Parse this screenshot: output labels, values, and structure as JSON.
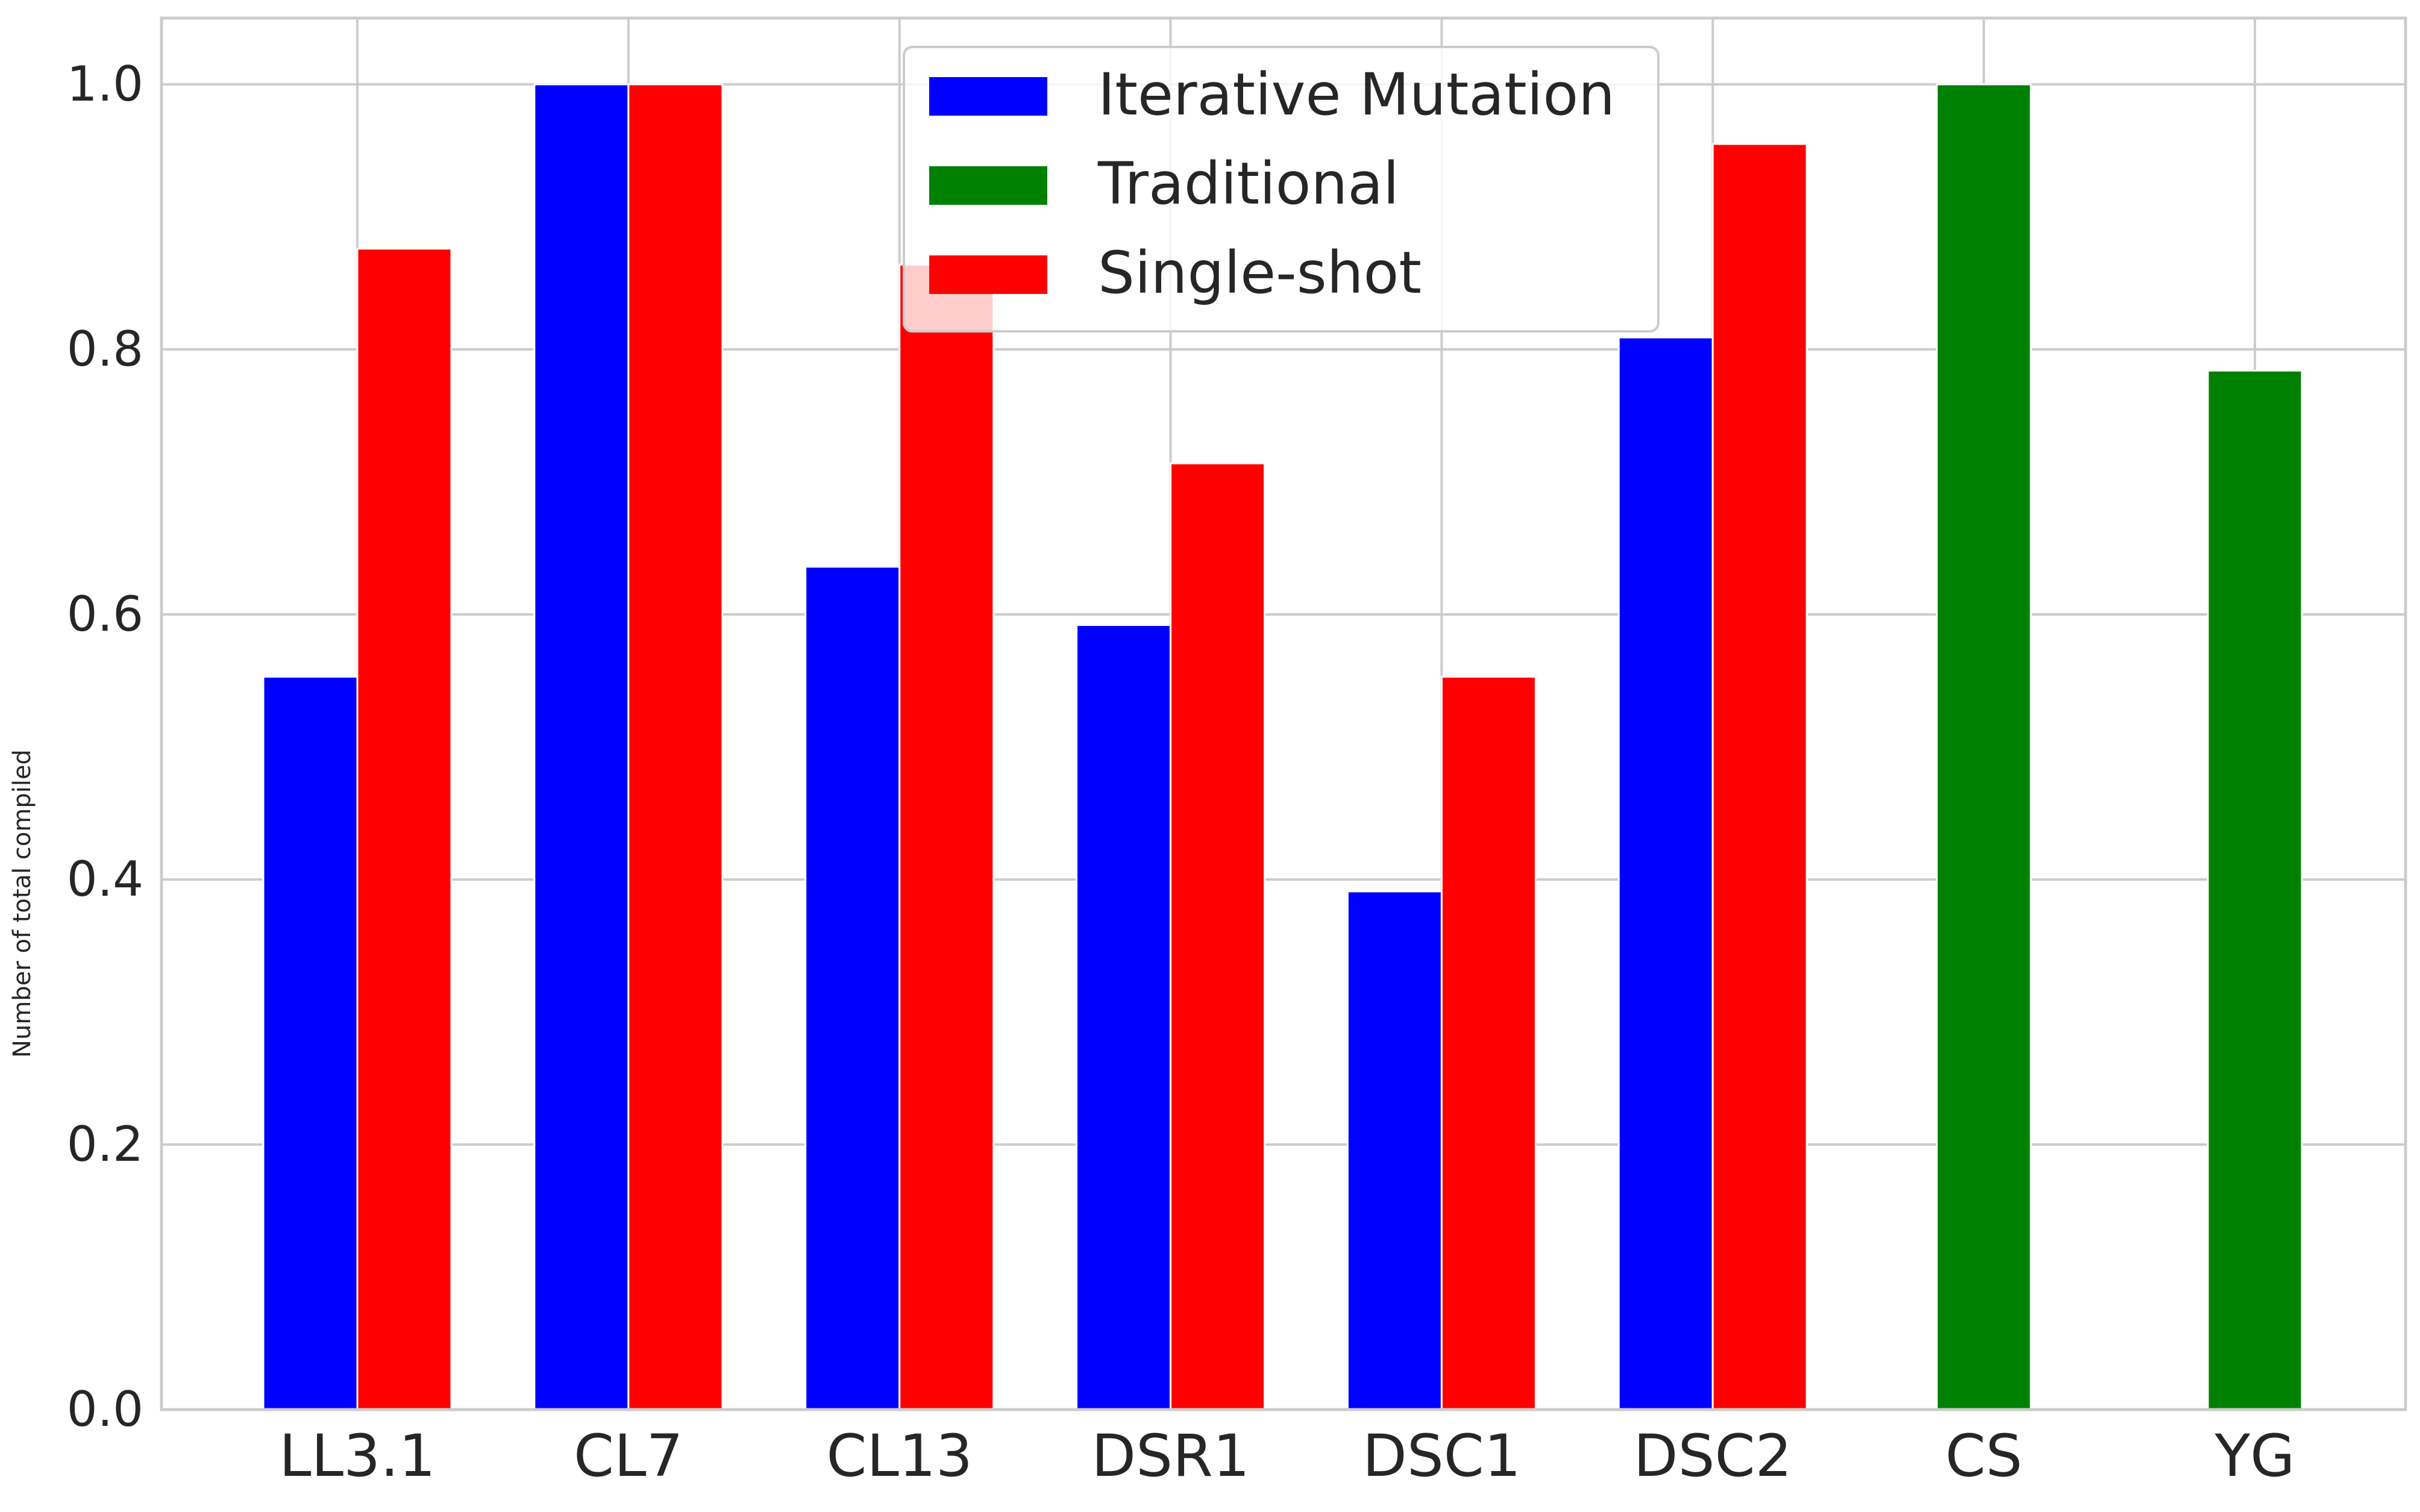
{
  "chart_data": {
    "type": "bar",
    "title": "",
    "xlabel": "",
    "ylabel": "Number of total compiled",
    "ylim": [
      0,
      1.05
    ],
    "yticks": [
      0.0,
      0.2,
      0.4,
      0.6,
      0.8,
      1.0
    ],
    "ytick_labels": [
      "0.0",
      "0.2",
      "0.4",
      "0.6",
      "0.8",
      "1.0"
    ],
    "grid": true,
    "legend_position": "top-center",
    "categories": [
      "LL3.1",
      "CL7",
      "CL13",
      "DSR1",
      "DSC1",
      "DSC2",
      "CS",
      "YG"
    ],
    "series": [
      {
        "name": "Iterative Mutation",
        "color": "#0000ff",
        "values": [
          0.553,
          1.0,
          0.636,
          0.592,
          0.391,
          0.809,
          null,
          null
        ]
      },
      {
        "name": "Traditional",
        "color": "#008000",
        "values": [
          null,
          null,
          null,
          null,
          null,
          null,
          1.0,
          0.784
        ]
      },
      {
        "name": "Single-shot",
        "color": "#ff0000",
        "values": [
          0.876,
          1.0,
          0.864,
          0.714,
          0.553,
          0.955,
          null,
          null
        ]
      }
    ]
  }
}
